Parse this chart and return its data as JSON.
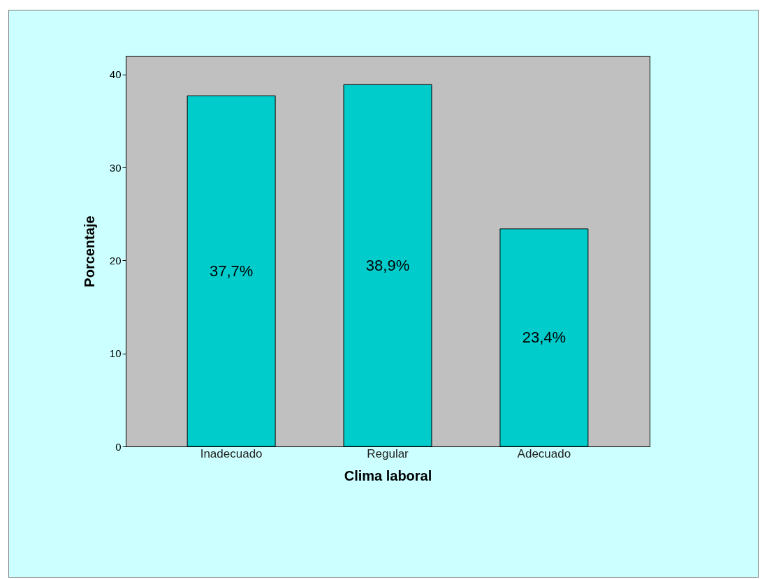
{
  "chart_data": {
    "type": "bar",
    "xlabel": "Clima laboral",
    "ylabel": "Porcentaje",
    "categories": [
      "Inadecuado",
      "Regular",
      "Adecuado"
    ],
    "values": [
      37.7,
      38.9,
      23.4
    ],
    "value_labels": [
      "37,7%",
      "38,9%",
      "23,4%"
    ],
    "color": "#00cccc",
    "ylim": [
      0,
      42
    ],
    "yticks": [
      0,
      10,
      20,
      30,
      40
    ],
    "grid": false
  }
}
